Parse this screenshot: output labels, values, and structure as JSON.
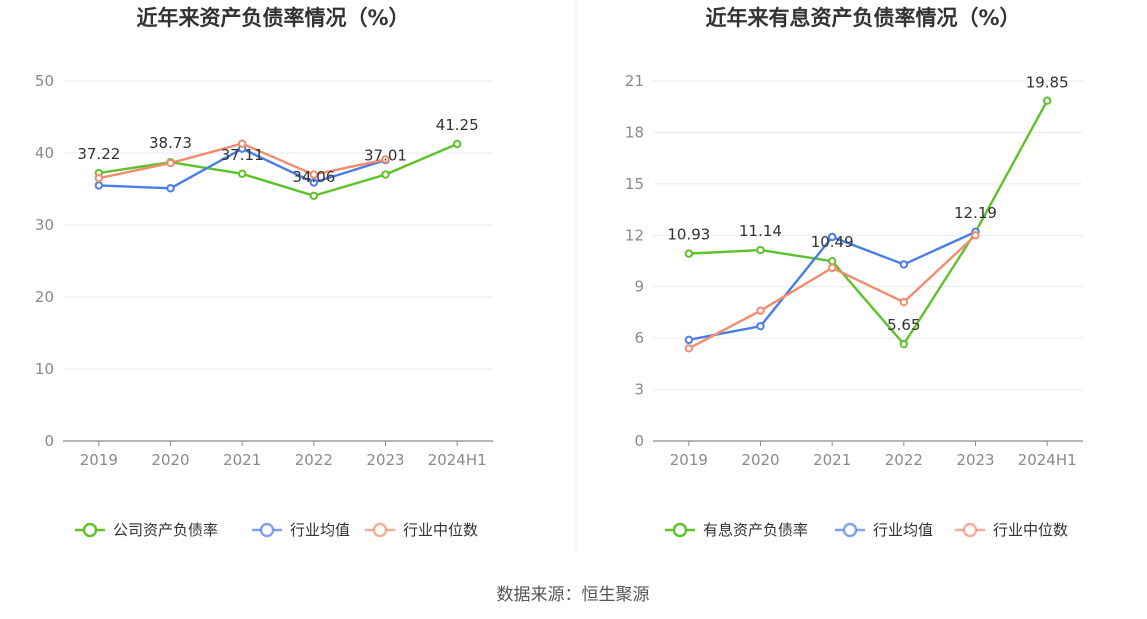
{
  "source": "数据来源：恒生聚源",
  "chart_data": [
    {
      "type": "line",
      "title": "近年来资产负债率情况（%）",
      "categories": [
        "2019",
        "2020",
        "2021",
        "2022",
        "2023",
        "2024H1"
      ],
      "ylim": [
        0,
        50
      ],
      "yticks": [
        0,
        10,
        20,
        30,
        40,
        50
      ],
      "grid": true,
      "legend_position": "bottom",
      "series": [
        {
          "name": "公司资产负债率",
          "color": "#5ec22a",
          "values": [
            37.22,
            38.73,
            37.11,
            34.06,
            37.01,
            41.25
          ],
          "labels": [
            "37.22",
            "38.73",
            "37.11",
            "34.06",
            "37.01",
            "41.25"
          ]
        },
        {
          "name": "行业均值",
          "color": "#4a7ee6",
          "values": [
            35.5,
            35.1,
            40.6,
            35.9,
            39.0,
            null
          ]
        },
        {
          "name": "行业中位数",
          "color": "#f28c6c",
          "values": [
            36.5,
            38.6,
            41.3,
            37.0,
            39.1,
            null
          ]
        }
      ]
    },
    {
      "type": "line",
      "title": "近年来有息资产负债率情况（%）",
      "categories": [
        "2019",
        "2020",
        "2021",
        "2022",
        "2023",
        "2024H1"
      ],
      "ylim": [
        0,
        21
      ],
      "yticks": [
        0,
        3,
        6,
        9,
        12,
        15,
        18,
        21
      ],
      "grid": true,
      "legend_position": "bottom",
      "series": [
        {
          "name": "有息资产负债率",
          "color": "#5ec22a",
          "values": [
            10.93,
            11.14,
            10.49,
            5.65,
            12.19,
            19.85
          ],
          "labels": [
            "10.93",
            "11.14",
            "10.49",
            "5.65",
            "12.19",
            "19.85"
          ]
        },
        {
          "name": "行业均值",
          "color": "#4a7ee6",
          "values": [
            5.9,
            6.7,
            11.9,
            10.3,
            12.2,
            null
          ]
        },
        {
          "name": "行业中位数",
          "color": "#f28c6c",
          "values": [
            5.4,
            7.6,
            10.1,
            8.1,
            12.0,
            null
          ]
        }
      ]
    }
  ]
}
